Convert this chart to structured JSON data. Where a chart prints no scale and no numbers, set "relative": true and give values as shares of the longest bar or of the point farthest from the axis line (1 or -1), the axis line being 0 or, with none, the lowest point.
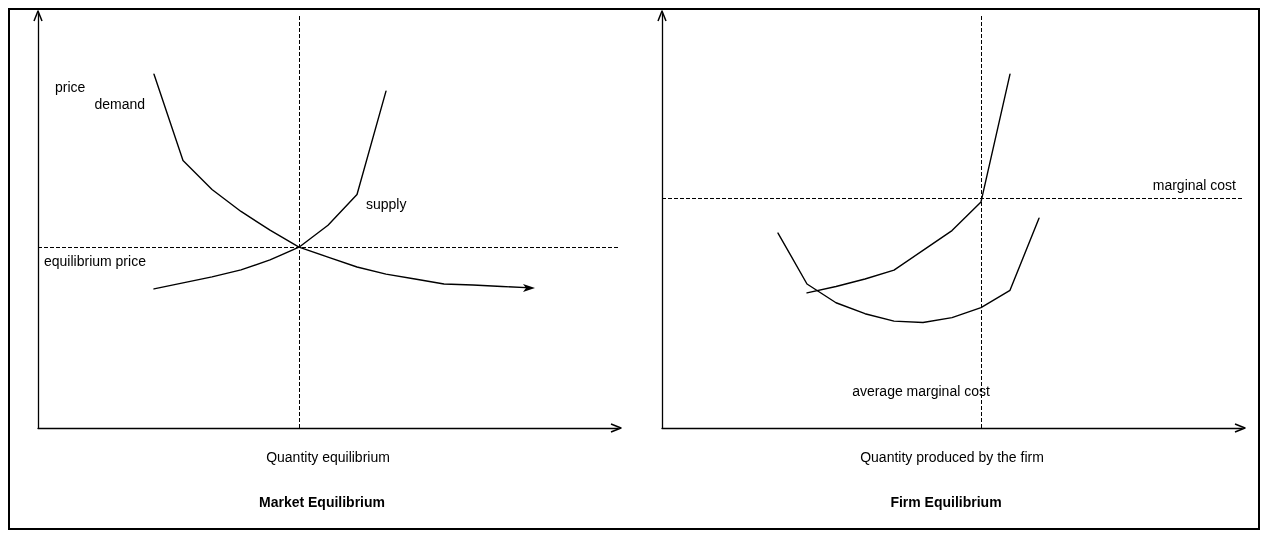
{
  "chart_data": [
    {
      "type": "line",
      "title": "Market Equilibrium",
      "xlabel": "Quantity equilibrium",
      "ylabel": "price",
      "relative": true,
      "grid": false,
      "legend": false,
      "marker": "none",
      "line_style": "solid",
      "categories": [
        null,
        null,
        null,
        null,
        null,
        null,
        null,
        null,
        null,
        null,
        null,
        null,
        null,
        null,
        null,
        null,
        null,
        null,
        null,
        null,
        null
      ],
      "series": [
        {
          "name": "demand",
          "color": "#000000",
          "values": [
            null,
            null,
            null,
            null,
            1,
            0.756,
            0.674,
            0.612,
            0.559,
            0.511,
            0.483,
            0.455,
            0.435,
            0.421,
            0.407,
            0.404,
            0.4,
            0.396,
            null,
            null,
            null
          ]
        },
        {
          "name": "supply",
          "color": "#000000",
          "values": [
            null,
            null,
            null,
            null,
            0.393,
            0.41,
            0.427,
            0.447,
            0.475,
            0.511,
            0.573,
            0.66,
            0.952,
            null,
            null,
            null,
            null,
            null,
            null,
            null,
            null
          ]
        }
      ],
      "ref_lines": [
        {
          "axis": "y",
          "value": 0.511,
          "label": "equilibrium price",
          "line_style": "dashed",
          "color": "#000000"
        }
      ]
    },
    {
      "type": "line",
      "title": "Firm Equilibrium",
      "xlabel": "Quantity produced by the firm",
      "relative": true,
      "grid": false,
      "legend": false,
      "marker": "none",
      "line_style": "solid",
      "categories": [
        null,
        null,
        null,
        null,
        null,
        null,
        null,
        null,
        null,
        null,
        null,
        null,
        null,
        null,
        null,
        null,
        null,
        null,
        null,
        null,
        null
      ],
      "series": [
        {
          "color": "#000000",
          "values": [
            null,
            null,
            null,
            null,
            null,
            0.382,
            0.4,
            0.421,
            0.446,
            0.502,
            0.558,
            0.639,
            1,
            null,
            null,
            null,
            null,
            null,
            null,
            null,
            null
          ]
        },
        {
          "color": "#000000",
          "values": [
            null,
            null,
            null,
            null,
            0.551,
            0.407,
            0.354,
            0.323,
            0.302,
            0.298,
            0.312,
            0.34,
            0.389,
            0.593,
            null,
            null,
            null,
            null,
            null,
            null,
            null
          ]
        }
      ],
      "ref_lines": [
        {
          "axis": "y",
          "value": 0.649,
          "label": "marginal cost",
          "line_style": "dashed",
          "color": "#000000"
        }
      ],
      "annotations": [
        "average marginal cost"
      ]
    }
  ]
}
